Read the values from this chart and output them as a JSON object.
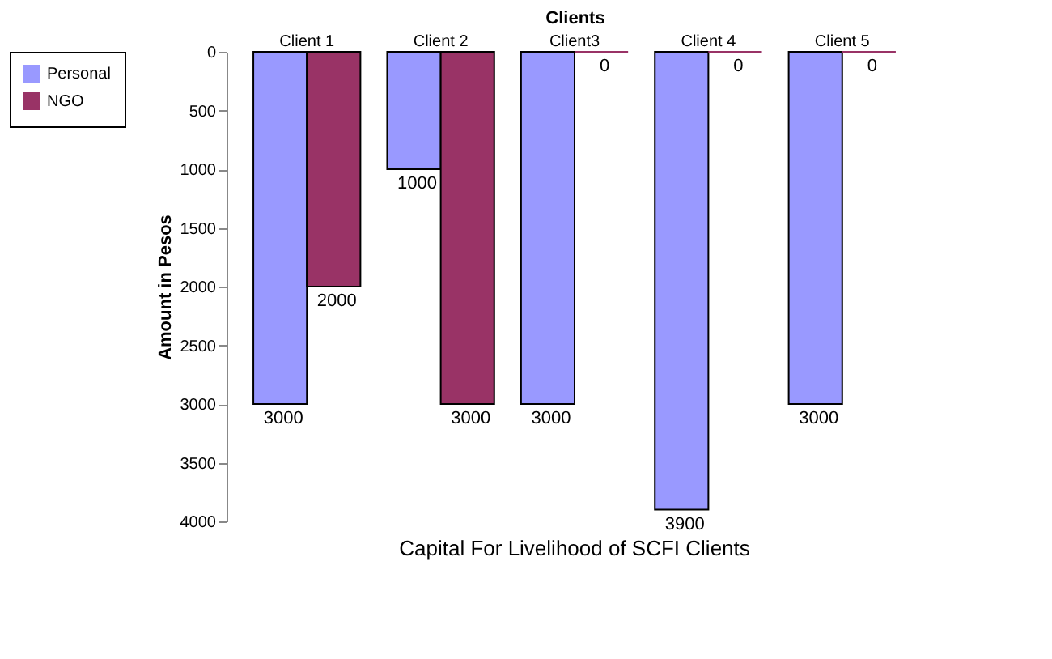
{
  "chart_data": {
    "type": "bar",
    "title": "Capital For Livelihood of SCFI Clients",
    "xlabel": "Clients",
    "ylabel": "Amount in Pesos",
    "categories": [
      "Client 1",
      "Client 2",
      "Client3",
      "Client 4",
      "Client 5"
    ],
    "series": [
      {
        "name": "Personal",
        "color": "#9999ff",
        "values": [
          3000,
          1000,
          3000,
          3900,
          3000
        ]
      },
      {
        "name": "NGO",
        "color": "#993366",
        "values": [
          2000,
          3000,
          0,
          0,
          0
        ]
      }
    ],
    "ylim": [
      4000,
      0
    ],
    "yticks": [
      0,
      500,
      1000,
      1500,
      2000,
      2500,
      3000,
      3500,
      4000
    ],
    "data_labels": true,
    "grid": false,
    "legend": "top left"
  }
}
